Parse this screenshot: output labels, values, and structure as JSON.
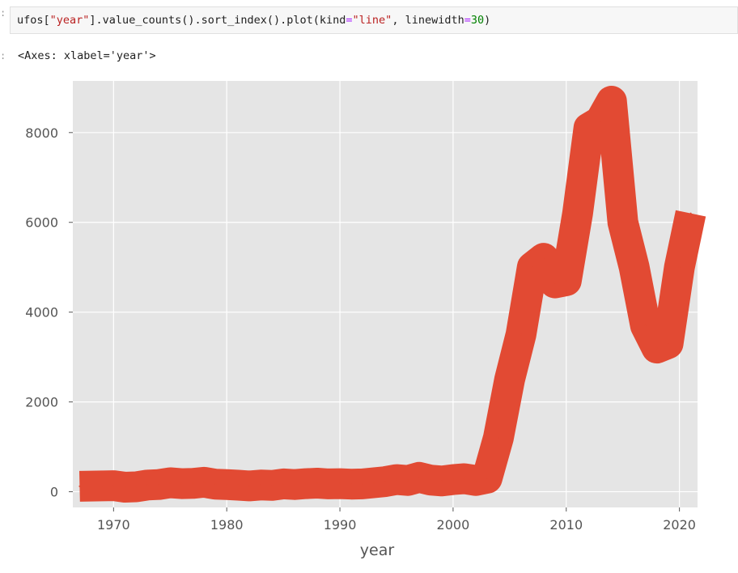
{
  "cell": {
    "prompt": ":",
    "code_parts": [
      "ufos[",
      "\"year\"",
      "].value_counts().sort_index().plot(kind",
      "=",
      "\"line\"",
      ", linewidth",
      "=",
      "30",
      ")"
    ],
    "output_prompt": ":",
    "output_text": "<Axes: xlabel='year'>"
  },
  "chart_data": {
    "type": "line",
    "xlabel": "year",
    "ylabel": "",
    "title": "",
    "xlim": [
      1966.4,
      2021.6
    ],
    "ylim": [
      -350,
      9150
    ],
    "xticks": [
      1970,
      1980,
      1990,
      2000,
      2010,
      2020
    ],
    "yticks": [
      0,
      2000,
      4000,
      6000,
      8000
    ],
    "xtick_labels": [
      "1970",
      "1980",
      "1990",
      "2000",
      "2010",
      "2020"
    ],
    "ytick_labels": [
      "0",
      "2000",
      "4000",
      "6000",
      "8000"
    ],
    "grid": true,
    "line_color": "#e24a33",
    "background_color": "#e5e5e5",
    "grid_color": "#ffffff",
    "linewidth": 30,
    "x": [
      1967,
      1968,
      1969,
      1970,
      1971,
      1972,
      1973,
      1974,
      1975,
      1976,
      1977,
      1978,
      1979,
      1980,
      1981,
      1982,
      1983,
      1984,
      1985,
      1986,
      1987,
      1988,
      1989,
      1990,
      1991,
      1992,
      1993,
      1994,
      1995,
      1996,
      1997,
      1998,
      1999,
      2000,
      2001,
      2002,
      2003,
      2004,
      2005,
      2006,
      2007,
      2008,
      2009,
      2010,
      2011,
      2012,
      2013,
      2014,
      2015,
      2016,
      2017,
      2018,
      2019,
      2020,
      2021
    ],
    "y": [
      120,
      125,
      130,
      135,
      100,
      110,
      150,
      160,
      200,
      180,
      185,
      210,
      170,
      160,
      145,
      130,
      150,
      140,
      175,
      160,
      180,
      190,
      175,
      180,
      170,
      175,
      200,
      225,
      270,
      250,
      320,
      260,
      240,
      270,
      290,
      250,
      300,
      1200,
      2500,
      3500,
      5000,
      5200,
      4650,
      4700,
      6200,
      8100,
      8250,
      8700,
      6000,
      5000,
      3700,
      3200,
      3300,
      5000,
      6200
    ]
  }
}
